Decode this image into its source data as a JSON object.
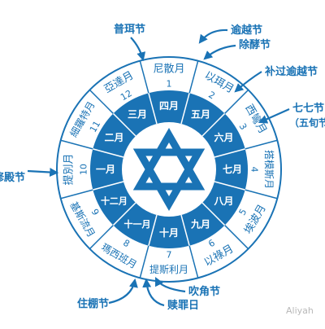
{
  "colors": {
    "primary": "#1a73b5",
    "outer_fill": "#ffffff",
    "inner_fill": "#1a73b5",
    "hub_fill": "#ffffff",
    "star": "#1a73b5"
  },
  "icons": {
    "center": "star-of-david-icon",
    "pointer": "arrow-icon"
  },
  "months": [
    {
      "name": "尼散月",
      "number": "1",
      "gregorian": "四月"
    },
    {
      "name": "以珥月",
      "number": "2",
      "gregorian": "五月"
    },
    {
      "name": "西彎月",
      "number": "3",
      "gregorian": "六月"
    },
    {
      "name": "搭模斯月",
      "number": "4",
      "gregorian": "七月"
    },
    {
      "name": "埃波月",
      "number": "5",
      "gregorian": "八月"
    },
    {
      "name": "以祿月",
      "number": "6",
      "gregorian": "九月"
    },
    {
      "name": "提斯利月",
      "number": "7",
      "gregorian": "十月"
    },
    {
      "name": "瑪西班月",
      "number": "8",
      "gregorian": "十一月"
    },
    {
      "name": "基斯流月",
      "number": "9",
      "gregorian": "十二月"
    },
    {
      "name": "提別月",
      "number": "10",
      "gregorian": "一月"
    },
    {
      "name": "細羅特月",
      "number": "11",
      "gregorian": "二月"
    },
    {
      "name": "亞達月",
      "number": "12",
      "gregorian": "三月"
    }
  ],
  "festivals": [
    {
      "name": "普珥节"
    },
    {
      "name": "逾越节"
    },
    {
      "name": "除酵节"
    },
    {
      "name": "补过逾越节"
    },
    {
      "name": "七七节"
    },
    {
      "name": "（五旬节）"
    },
    {
      "name": "修殿节"
    },
    {
      "name": "住棚节"
    },
    {
      "name": "吹角节"
    },
    {
      "name": "赎罪日"
    }
  ],
  "watermark": "Aliyah"
}
